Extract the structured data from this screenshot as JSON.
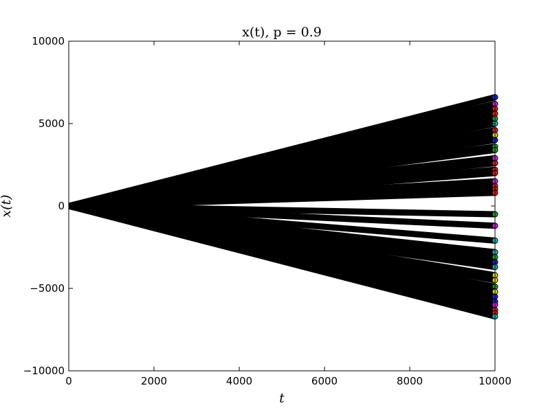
{
  "chart_data": {
    "type": "line",
    "title": "x(t), p = 0.9",
    "xlabel": "t",
    "ylabel": "x(t)",
    "xlim": [
      0,
      10000
    ],
    "ylim": [
      -10000,
      10000
    ],
    "x_ticks": [
      0,
      2000,
      4000,
      6000,
      8000,
      10000
    ],
    "y_ticks": [
      -10000,
      -5000,
      0,
      5000,
      10000
    ],
    "x_tick_labels": [
      "0",
      "2000",
      "4000",
      "6000",
      "8000",
      "10000"
    ],
    "y_tick_labels": [
      "−10000",
      "−5000",
      "0",
      "5000",
      "10000"
    ],
    "grid": false,
    "legend": "none",
    "line_color": "#000000",
    "series": [
      {
        "x": [
          0,
          10000
        ],
        "y": [
          0,
          6600
        ],
        "end_color": "#1f1fd6"
      },
      {
        "x": [
          0,
          10000
        ],
        "y": [
          0,
          6200
        ],
        "end_color": "#d020d0"
      },
      {
        "x": [
          0,
          10000
        ],
        "y": [
          0,
          5900
        ],
        "end_color": "#d62020"
      },
      {
        "x": [
          0,
          10000
        ],
        "y": [
          0,
          5600
        ],
        "end_color": "#d62020"
      },
      {
        "x": [
          0,
          10000
        ],
        "y": [
          0,
          5300
        ],
        "end_color": "#20a020"
      },
      {
        "x": [
          0,
          10000
        ],
        "y": [
          0,
          5000
        ],
        "end_color": "#20b0b0"
      },
      {
        "x": [
          0,
          10000
        ],
        "y": [
          0,
          4600
        ],
        "end_color": "#d62020"
      },
      {
        "x": [
          0,
          10000
        ],
        "y": [
          0,
          4300
        ],
        "end_color": "#d0d020"
      },
      {
        "x": [
          0,
          10000
        ],
        "y": [
          0,
          4000
        ],
        "end_color": "#1f1fd6"
      },
      {
        "x": [
          0,
          10000
        ],
        "y": [
          0,
          3600
        ],
        "end_color": "#20a020"
      },
      {
        "x": [
          0,
          10000
        ],
        "y": [
          0,
          3400
        ],
        "end_color": "#20a020"
      },
      {
        "x": [
          0,
          10000
        ],
        "y": [
          0,
          2900
        ],
        "end_color": "#d020d0"
      },
      {
        "x": [
          0,
          10000
        ],
        "y": [
          0,
          2600
        ],
        "end_color": "#d62020"
      },
      {
        "x": [
          0,
          10000
        ],
        "y": [
          0,
          2200
        ],
        "end_color": "#d62020"
      },
      {
        "x": [
          0,
          10000
        ],
        "y": [
          0,
          2000
        ],
        "end_color": "#d62020"
      },
      {
        "x": [
          0,
          10000
        ],
        "y": [
          0,
          1500
        ],
        "end_color": "#d020d0"
      },
      {
        "x": [
          0,
          10000
        ],
        "y": [
          0,
          1200
        ],
        "end_color": "#d62020"
      },
      {
        "x": [
          0,
          10000
        ],
        "y": [
          0,
          1000
        ],
        "end_color": "#d62020"
      },
      {
        "x": [
          0,
          10000
        ],
        "y": [
          0,
          800
        ],
        "end_color": "#d62020"
      },
      {
        "x": [
          0,
          10000
        ],
        "y": [
          0,
          -500
        ],
        "end_color": "#20a020"
      },
      {
        "x": [
          0,
          10000
        ],
        "y": [
          0,
          -1200
        ],
        "end_color": "#d020d0"
      },
      {
        "x": [
          0,
          10000
        ],
        "y": [
          0,
          -2100
        ],
        "end_color": "#20b0b0"
      },
      {
        "x": [
          0,
          10000
        ],
        "y": [
          0,
          -2800
        ],
        "end_color": "#20b0b0"
      },
      {
        "x": [
          0,
          10000
        ],
        "y": [
          0,
          -3100
        ],
        "end_color": "#20a020"
      },
      {
        "x": [
          0,
          10000
        ],
        "y": [
          0,
          -3400
        ],
        "end_color": "#1f1fd6"
      },
      {
        "x": [
          0,
          10000
        ],
        "y": [
          0,
          -3700
        ],
        "end_color": "#20b0b0"
      },
      {
        "x": [
          0,
          10000
        ],
        "y": [
          0,
          -4200
        ],
        "end_color": "#d0d020"
      },
      {
        "x": [
          0,
          10000
        ],
        "y": [
          0,
          -4500
        ],
        "end_color": "#d0d020"
      },
      {
        "x": [
          0,
          10000
        ],
        "y": [
          0,
          -4900
        ],
        "end_color": "#20a020"
      },
      {
        "x": [
          0,
          10000
        ],
        "y": [
          0,
          -5200
        ],
        "end_color": "#d0d020"
      },
      {
        "x": [
          0,
          10000
        ],
        "y": [
          0,
          -5500
        ],
        "end_color": "#1f1fd6"
      },
      {
        "x": [
          0,
          10000
        ],
        "y": [
          0,
          -5800
        ],
        "end_color": "#1f1fd6"
      },
      {
        "x": [
          0,
          10000
        ],
        "y": [
          0,
          -6000
        ],
        "end_color": "#d020d0"
      },
      {
        "x": [
          0,
          10000
        ],
        "y": [
          0,
          -6300
        ],
        "end_color": "#d62020"
      },
      {
        "x": [
          0,
          10000
        ],
        "y": [
          0,
          -6500
        ],
        "end_color": "#d62020"
      },
      {
        "x": [
          0,
          10000
        ],
        "y": [
          0,
          -6700
        ],
        "end_color": "#20b0b0"
      }
    ]
  }
}
